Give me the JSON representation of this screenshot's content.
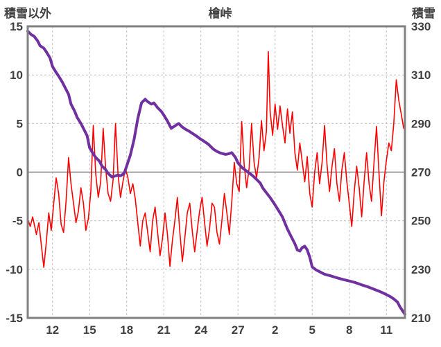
{
  "chart_data": {
    "type": "line",
    "title": "檜峠",
    "left_axis": {
      "label": "積雪以外",
      "min": -15,
      "max": 15,
      "ticks": [
        15,
        10,
        5,
        0,
        -5,
        -10,
        -15
      ]
    },
    "right_axis": {
      "label": "積雪",
      "min": 210,
      "max": 330,
      "ticks": [
        330,
        310,
        290,
        270,
        250,
        230,
        210
      ]
    },
    "x_axis": {
      "min": 0,
      "max": 30.5,
      "tick_positions": [
        2,
        5,
        8,
        11,
        14,
        17,
        20,
        23,
        26,
        29
      ],
      "tick_labels": [
        "12",
        "15",
        "18",
        "21",
        "24",
        "27",
        "2",
        "5",
        "8",
        "11"
      ]
    },
    "grid": {
      "color": "#bfbfbf",
      "dash": "3,3"
    },
    "frame_color": "#808080",
    "zero_line": {
      "value": 0,
      "color": "#808080"
    },
    "series": [
      {
        "key": "non-snow",
        "name": "積雪以外",
        "axis": "left",
        "color": "#ff0000",
        "width": 1.6,
        "points": [
          [
            0,
            -4.8
          ],
          [
            0.2,
            -5.6
          ],
          [
            0.4,
            -4.6
          ],
          [
            0.7,
            -6.4
          ],
          [
            0.9,
            -5.2
          ],
          [
            1.1,
            -7.5
          ],
          [
            1.3,
            -9.8
          ],
          [
            1.5,
            -7.2
          ],
          [
            1.7,
            -4.2
          ],
          [
            1.9,
            -6
          ],
          [
            2.1,
            -3.2
          ],
          [
            2.3,
            -0.6
          ],
          [
            2.5,
            -2.2
          ],
          [
            2.7,
            -5.4
          ],
          [
            2.9,
            -6.2
          ],
          [
            3.1,
            -3
          ],
          [
            3.3,
            1.5
          ],
          [
            3.5,
            -1.2
          ],
          [
            3.7,
            -3.2
          ],
          [
            3.9,
            -5.2
          ],
          [
            4.1,
            -4
          ],
          [
            4.3,
            -1.6
          ],
          [
            4.5,
            -3.2
          ],
          [
            4.7,
            -6
          ],
          [
            4.9,
            -4.8
          ],
          [
            5.1,
            -2
          ],
          [
            5.3,
            4.8
          ],
          [
            5.5,
            -0.2
          ],
          [
            5.7,
            -2.6
          ],
          [
            5.9,
            -1
          ],
          [
            6.1,
            4.5
          ],
          [
            6.3,
            0.4
          ],
          [
            6.5,
            -2.2
          ],
          [
            6.7,
            -3
          ],
          [
            6.9,
            -0.8
          ],
          [
            7.1,
            5
          ],
          [
            7.3,
            -0.2
          ],
          [
            7.5,
            -2.6
          ],
          [
            7.7,
            -1
          ],
          [
            7.9,
            0.4
          ],
          [
            8.1,
            -0.6
          ],
          [
            8.3,
            -2.2
          ],
          [
            8.5,
            -1.2
          ],
          [
            8.7,
            -2.8
          ],
          [
            8.9,
            -5.2
          ],
          [
            9.1,
            -7.6
          ],
          [
            9.3,
            -5
          ],
          [
            9.5,
            -4.2
          ],
          [
            9.7,
            -6.2
          ],
          [
            9.9,
            -8.2
          ],
          [
            10.1,
            -5
          ],
          [
            10.3,
            -3.6
          ],
          [
            10.5,
            -6.2
          ],
          [
            10.7,
            -8.6
          ],
          [
            10.9,
            -6.8
          ],
          [
            11.1,
            -4.2
          ],
          [
            11.3,
            -6.4
          ],
          [
            11.5,
            -9.7
          ],
          [
            11.7,
            -7
          ],
          [
            11.9,
            -5
          ],
          [
            12.1,
            -2.6
          ],
          [
            12.3,
            -6.2
          ],
          [
            12.5,
            -9.2
          ],
          [
            12.7,
            -6.8
          ],
          [
            12.9,
            -4.2
          ],
          [
            13.1,
            -3.2
          ],
          [
            13.3,
            -6
          ],
          [
            13.5,
            -8.2
          ],
          [
            13.7,
            -6
          ],
          [
            13.9,
            -4
          ],
          [
            14.1,
            -2.6
          ],
          [
            14.3,
            -5.2
          ],
          [
            14.5,
            -7.6
          ],
          [
            14.7,
            -5.8
          ],
          [
            14.9,
            -3.2
          ],
          [
            15.1,
            -3.6
          ],
          [
            15.3,
            -6.2
          ],
          [
            15.5,
            -7.4
          ],
          [
            15.7,
            -5
          ],
          [
            15.9,
            -2.2
          ],
          [
            16.1,
            -4.2
          ],
          [
            16.3,
            -6.4
          ],
          [
            16.5,
            -3
          ],
          [
            16.7,
            1
          ],
          [
            16.9,
            -1.2
          ],
          [
            17.1,
            -2
          ],
          [
            17.3,
            5.2
          ],
          [
            17.5,
            0.8
          ],
          [
            17.7,
            -1.6
          ],
          [
            17.9,
            0.4
          ],
          [
            18.1,
            5
          ],
          [
            18.3,
            1
          ],
          [
            18.5,
            -0.6
          ],
          [
            18.7,
            1.4
          ],
          [
            18.9,
            5.3
          ],
          [
            19.1,
            2.2
          ],
          [
            19.3,
            4.2
          ],
          [
            19.45,
            12.4
          ],
          [
            19.6,
            6.2
          ],
          [
            19.8,
            3.8
          ],
          [
            20,
            7
          ],
          [
            20.2,
            4.4
          ],
          [
            20.4,
            6.8
          ],
          [
            20.6,
            4.8
          ],
          [
            20.8,
            3
          ],
          [
            21,
            6.5
          ],
          [
            21.2,
            4
          ],
          [
            21.4,
            6.2
          ],
          [
            21.6,
            2
          ],
          [
            21.8,
            0.2
          ],
          [
            22,
            3
          ],
          [
            22.2,
            1
          ],
          [
            22.4,
            -1
          ],
          [
            22.6,
            1.6
          ],
          [
            22.8,
            -2.2
          ],
          [
            23,
            -3.6
          ],
          [
            23.2,
            0
          ],
          [
            23.4,
            2
          ],
          [
            23.6,
            -1.2
          ],
          [
            23.8,
            1
          ],
          [
            24,
            4.8
          ],
          [
            24.2,
            0.8
          ],
          [
            24.4,
            -2
          ],
          [
            24.6,
            0.6
          ],
          [
            24.8,
            2.4
          ],
          [
            25,
            -1.2
          ],
          [
            25.2,
            -3
          ],
          [
            25.4,
            0.2
          ],
          [
            25.6,
            2
          ],
          [
            25.8,
            -1
          ],
          [
            26,
            -3.2
          ],
          [
            26.2,
            -5.6
          ],
          [
            26.4,
            -2
          ],
          [
            26.6,
            0.6
          ],
          [
            26.8,
            -1.6
          ],
          [
            27,
            -4.6
          ],
          [
            27.2,
            -1
          ],
          [
            27.4,
            2
          ],
          [
            27.6,
            -1.2
          ],
          [
            27.8,
            -3
          ],
          [
            28,
            1
          ],
          [
            28.2,
            4.7
          ],
          [
            28.4,
            0
          ],
          [
            28.6,
            -4.5
          ],
          [
            28.8,
            -1
          ],
          [
            29,
            1.2
          ],
          [
            29.2,
            3
          ],
          [
            29.4,
            2.2
          ],
          [
            29.6,
            5
          ],
          [
            29.8,
            9.5
          ],
          [
            30,
            7.4
          ],
          [
            30.2,
            6
          ],
          [
            30.4,
            4.5
          ]
        ]
      },
      {
        "key": "snow-depth",
        "name": "積雪",
        "axis": "right",
        "color": "#7030a0",
        "width": 4,
        "points": [
          [
            0,
            328
          ],
          [
            0.3,
            326.5
          ],
          [
            0.5,
            326
          ],
          [
            0.8,
            324
          ],
          [
            1,
            322
          ],
          [
            1.3,
            321
          ],
          [
            1.5,
            319.5
          ],
          [
            1.8,
            317
          ],
          [
            2,
            313.5
          ],
          [
            2.3,
            311
          ],
          [
            2.5,
            309.5
          ],
          [
            2.8,
            307
          ],
          [
            3,
            305
          ],
          [
            3.3,
            302
          ],
          [
            3.5,
            298
          ],
          [
            3.8,
            295
          ],
          [
            4,
            292.5
          ],
          [
            4.3,
            290
          ],
          [
            4.5,
            288
          ],
          [
            4.8,
            285
          ],
          [
            5,
            280
          ],
          [
            5.3,
            277.5
          ],
          [
            5.5,
            276
          ],
          [
            5.8,
            274.5
          ],
          [
            6,
            272.5
          ],
          [
            6.3,
            271
          ],
          [
            6.5,
            269.5
          ],
          [
            6.8,
            268
          ],
          [
            7,
            268.3
          ],
          [
            7.3,
            268.8
          ],
          [
            7.5,
            268.5
          ],
          [
            7.8,
            269.5
          ],
          [
            8,
            272.5
          ],
          [
            8.3,
            277
          ],
          [
            8.6,
            283.5
          ],
          [
            8.9,
            292
          ],
          [
            9.2,
            298.5
          ],
          [
            9.5,
            300
          ],
          [
            9.7,
            299
          ],
          [
            10,
            298
          ],
          [
            10.2,
            298.5
          ],
          [
            10.5,
            296.5
          ],
          [
            10.8,
            295
          ],
          [
            11,
            293.5
          ],
          [
            11.3,
            291
          ],
          [
            11.6,
            288
          ],
          [
            11.9,
            289
          ],
          [
            12.2,
            290
          ],
          [
            12.5,
            288.5
          ],
          [
            12.8,
            287.5
          ],
          [
            13,
            287
          ],
          [
            13.3,
            286
          ],
          [
            13.6,
            285
          ],
          [
            14,
            283.5
          ],
          [
            14.3,
            282.5
          ],
          [
            14.6,
            281.5
          ],
          [
            15,
            279.5
          ],
          [
            15.3,
            278.5
          ],
          [
            15.6,
            277.8
          ],
          [
            16,
            277.3
          ],
          [
            16.3,
            277.6
          ],
          [
            16.5,
            278
          ],
          [
            16.8,
            276
          ],
          [
            17,
            273.8
          ],
          [
            17.3,
            272
          ],
          [
            17.6,
            270.8
          ],
          [
            17.8,
            270
          ],
          [
            18.2,
            268.5
          ],
          [
            18.5,
            267
          ],
          [
            18.8,
            265.5
          ],
          [
            19,
            263.5
          ],
          [
            19.3,
            261.5
          ],
          [
            19.6,
            259.5
          ],
          [
            20,
            256.5
          ],
          [
            20.3,
            254
          ],
          [
            20.6,
            251.5
          ],
          [
            21,
            246.5
          ],
          [
            21.3,
            243.5
          ],
          [
            21.6,
            240.5
          ],
          [
            21.8,
            238
          ],
          [
            22,
            237.5
          ],
          [
            22.2,
            239
          ],
          [
            22.4,
            239.5
          ],
          [
            22.6,
            238
          ],
          [
            22.8,
            235
          ],
          [
            23,
            231
          ],
          [
            23.3,
            229.8
          ],
          [
            23.6,
            229
          ],
          [
            24,
            228
          ],
          [
            24.5,
            227.3
          ],
          [
            25,
            226.5
          ],
          [
            25.5,
            225.8
          ],
          [
            26,
            225.2
          ],
          [
            26.5,
            224.5
          ],
          [
            27,
            223.6
          ],
          [
            27.5,
            222.8
          ],
          [
            28,
            221.8
          ],
          [
            28.5,
            220.8
          ],
          [
            29,
            219.6
          ],
          [
            29.3,
            218.8
          ],
          [
            29.6,
            217.8
          ],
          [
            29.9,
            216.5
          ],
          [
            30.1,
            214.5
          ],
          [
            30.3,
            213
          ],
          [
            30.5,
            211.5
          ]
        ]
      }
    ]
  }
}
